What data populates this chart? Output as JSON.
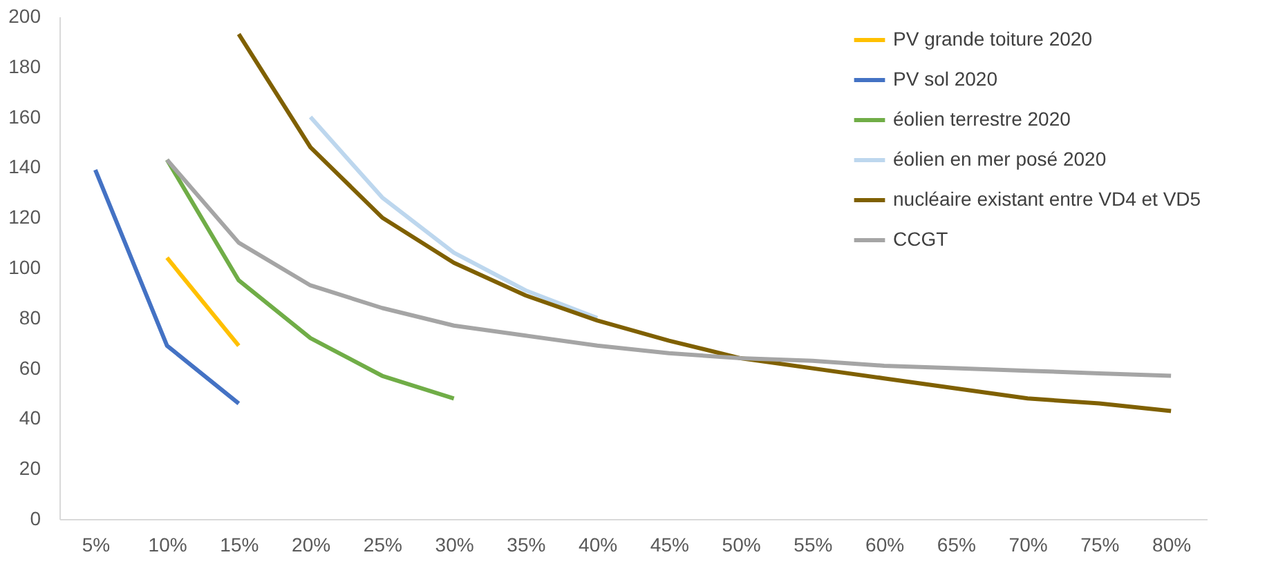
{
  "chart_data": {
    "type": "line",
    "categories": [
      "5%",
      "10%",
      "15%",
      "20%",
      "25%",
      "30%",
      "35%",
      "40%",
      "45%",
      "50%",
      "55%",
      "60%",
      "65%",
      "70%",
      "75%",
      "80%"
    ],
    "series": [
      {
        "name": "PV grande toiture 2020",
        "color": "#ffc000",
        "values": [
          null,
          104,
          69,
          null,
          null,
          null,
          null,
          null,
          null,
          null,
          null,
          null,
          null,
          null,
          null,
          null
        ]
      },
      {
        "name": "PV sol 2020",
        "color": "#4472c4",
        "values": [
          139,
          69,
          46,
          null,
          null,
          null,
          null,
          null,
          null,
          null,
          null,
          null,
          null,
          null,
          null,
          null
        ]
      },
      {
        "name": "éolien terrestre 2020",
        "color": "#70ad47",
        "values": [
          null,
          143,
          95,
          72,
          57,
          48,
          null,
          null,
          null,
          null,
          null,
          null,
          null,
          null,
          null,
          null
        ]
      },
      {
        "name": "éolien en mer posé 2020",
        "color": "#bdd7ee",
        "values": [
          null,
          null,
          null,
          160,
          128,
          106,
          91,
          80,
          null,
          null,
          null,
          null,
          null,
          null,
          null,
          null
        ]
      },
      {
        "name": "nucléaire existant entre VD4 et VD5",
        "color": "#7f6000",
        "values": [
          null,
          null,
          193,
          148,
          120,
          102,
          89,
          79,
          71,
          64,
          60,
          56,
          52,
          48,
          46,
          43
        ]
      },
      {
        "name": "CCGT",
        "color": "#a5a5a5",
        "values": [
          null,
          143,
          110,
          93,
          84,
          77,
          73,
          69,
          66,
          64,
          63,
          61,
          60,
          59,
          58,
          57
        ]
      }
    ],
    "ylim": [
      0,
      200
    ],
    "yticks": [
      0,
      20,
      40,
      60,
      80,
      100,
      120,
      140,
      160,
      180,
      200
    ],
    "grid": false,
    "legend": "top right",
    "line_style": "solid",
    "marker": "none"
  }
}
